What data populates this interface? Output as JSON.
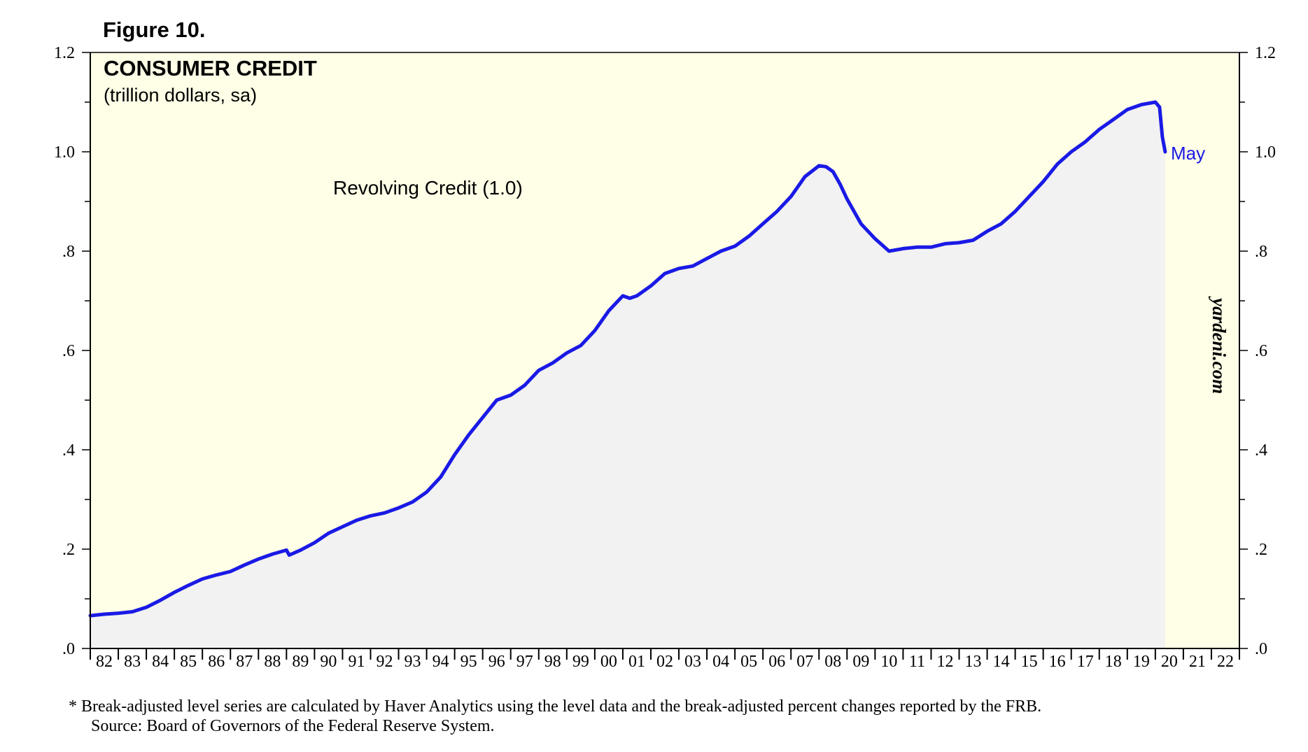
{
  "figure_label": "Figure 10.",
  "watermark": "yardeni.com",
  "footnote": {
    "line1": "*   Break-adjusted level series are calculated by Haver Analytics using the level data and the break-adjusted percent changes reported by the FRB.",
    "line2": "Source: Board of Governors of the Federal Reserve System."
  },
  "colors": {
    "plot_background": "#fffee6",
    "area_fill": "#f2f2f2",
    "series_line": "#1a1ae6",
    "axis": "#000000"
  },
  "chart_data": {
    "type": "area",
    "title": "CONSUMER CREDIT",
    "subtitle": "(trillion dollars, sa)",
    "xlabel": "",
    "ylabel": "",
    "x_range": [
      1982.0,
      2023.0
    ],
    "ylim": [
      0,
      1.2
    ],
    "y_ticks": [
      0,
      0.2,
      0.4,
      0.6,
      0.8,
      1.0,
      1.2
    ],
    "y_tick_labels": [
      ".0",
      ".2",
      ".4",
      ".6",
      ".8",
      "1.0",
      "1.2"
    ],
    "x_tick_labels": [
      "82",
      "83",
      "84",
      "85",
      "86",
      "87",
      "88",
      "89",
      "90",
      "91",
      "92",
      "93",
      "94",
      "95",
      "96",
      "97",
      "98",
      "99",
      "00",
      "01",
      "02",
      "03",
      "04",
      "05",
      "06",
      "07",
      "08",
      "09",
      "10",
      "11",
      "12",
      "13",
      "14",
      "15",
      "16",
      "17",
      "18",
      "19",
      "20",
      "21",
      "22"
    ],
    "grid": false,
    "annotation": "May",
    "series": [
      {
        "name": "Revolving Credit (1.0)",
        "x": [
          1982.0,
          1982.5,
          1983.0,
          1983.5,
          1984.0,
          1984.5,
          1985.0,
          1985.5,
          1986.0,
          1986.5,
          1987.0,
          1987.5,
          1988.0,
          1988.5,
          1989.0,
          1989.1,
          1989.5,
          1990.0,
          1990.5,
          1991.0,
          1991.5,
          1992.0,
          1992.5,
          1993.0,
          1993.5,
          1994.0,
          1994.5,
          1995.0,
          1995.5,
          1996.0,
          1996.5,
          1997.0,
          1997.5,
          1998.0,
          1998.5,
          1999.0,
          1999.5,
          2000.0,
          2000.5,
          2001.0,
          2001.25,
          2001.5,
          2002.0,
          2002.5,
          2003.0,
          2003.5,
          2004.0,
          2004.5,
          2005.0,
          2005.5,
          2006.0,
          2006.5,
          2007.0,
          2007.5,
          2008.0,
          2008.25,
          2008.5,
          2008.75,
          2009.0,
          2009.5,
          2010.0,
          2010.5,
          2011.0,
          2011.5,
          2012.0,
          2012.5,
          2013.0,
          2013.5,
          2014.0,
          2014.5,
          2015.0,
          2015.5,
          2016.0,
          2016.5,
          2017.0,
          2017.5,
          2018.0,
          2018.5,
          2019.0,
          2019.5,
          2020.0,
          2020.15,
          2020.25,
          2020.35
        ],
        "values": [
          0.066,
          0.069,
          0.071,
          0.074,
          0.083,
          0.097,
          0.113,
          0.127,
          0.14,
          0.148,
          0.155,
          0.168,
          0.18,
          0.19,
          0.198,
          0.188,
          0.198,
          0.213,
          0.232,
          0.245,
          0.258,
          0.267,
          0.273,
          0.283,
          0.295,
          0.315,
          0.345,
          0.39,
          0.43,
          0.465,
          0.5,
          0.51,
          0.53,
          0.56,
          0.575,
          0.595,
          0.61,
          0.64,
          0.68,
          0.71,
          0.705,
          0.71,
          0.73,
          0.755,
          0.765,
          0.77,
          0.785,
          0.8,
          0.81,
          0.83,
          0.855,
          0.88,
          0.91,
          0.95,
          0.972,
          0.97,
          0.96,
          0.935,
          0.905,
          0.855,
          0.825,
          0.8,
          0.805,
          0.808,
          0.808,
          0.815,
          0.817,
          0.822,
          0.84,
          0.855,
          0.88,
          0.91,
          0.94,
          0.975,
          1.0,
          1.02,
          1.045,
          1.065,
          1.085,
          1.095,
          1.1,
          1.09,
          1.03,
          1.0
        ]
      }
    ]
  }
}
